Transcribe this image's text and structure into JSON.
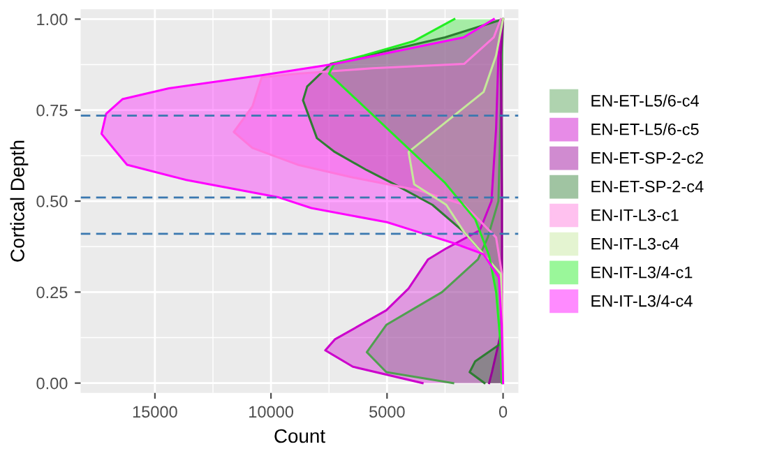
{
  "chart_data": {
    "type": "area",
    "orientation": "horizontal",
    "xlabel": "Count",
    "ylabel": "Cortical Depth",
    "xlim": [
      18200,
      -660
    ],
    "xticks": [
      15000,
      10000,
      5000,
      0
    ],
    "ylim": [
      -0.027,
      1.027
    ],
    "yticks": [
      {
        "value": 0,
        "label": "0.00"
      },
      {
        "value": 0.25,
        "label": "0.25"
      },
      {
        "value": 0.5,
        "label": "0.50"
      },
      {
        "value": 0.75,
        "label": "0.75"
      },
      {
        "value": 1,
        "label": "1.00"
      }
    ],
    "grid": true,
    "legend": "right",
    "ref_lines": [
      {
        "axis": "y",
        "value": 0.735,
        "label": null,
        "color": "#3a78b0",
        "line_style": "dashed"
      },
      {
        "axis": "y",
        "value": 0.51,
        "label": null,
        "color": "#3a78b0",
        "line_style": "dashed"
      },
      {
        "axis": "y",
        "value": 0.41,
        "label": null,
        "color": "#3a78b0",
        "line_style": "dashed"
      }
    ],
    "series": [
      {
        "name": "EN-ET-L5/6-c4",
        "color": "#4fa04f",
        "x": [
          0,
          0.03,
          0.085,
          0.16,
          0.25,
          0.34,
          0.4,
          0.5,
          0.75,
          1.0
        ],
        "values": [
          2150,
          5030,
          5870,
          5030,
          2630,
          1080,
          660,
          200,
          100,
          0
        ]
      },
      {
        "name": "EN-ET-L5/6-c5",
        "color": "#cc00cc",
        "x": [
          0,
          0.045,
          0.09,
          0.12,
          0.2,
          0.26,
          0.34,
          0.37,
          0.42,
          0.5,
          0.7,
          0.9,
          1.0
        ],
        "values": [
          3470,
          6470,
          7660,
          7250,
          5030,
          4070,
          3230,
          2450,
          1000,
          500,
          300,
          200,
          0
        ]
      },
      {
        "name": "EN-ET-SP-2-c2",
        "color": "#990099",
        "x": [
          0,
          0.03,
          0.08,
          0.15,
          0.5,
          0.9,
          1.0
        ],
        "values": [
          600,
          480,
          300,
          50,
          50,
          100,
          0
        ]
      },
      {
        "name": "EN-ET-SP-2-c4",
        "color": "#2e7d32",
        "x": [
          0,
          0.03,
          0.06,
          0.11,
          0.3,
          0.354,
          0.415,
          0.49,
          0.546,
          0.585,
          0.635,
          0.673,
          0.777,
          0.815,
          0.877,
          0.95,
          1.0
        ],
        "values": [
          800,
          1440,
          1200,
          60,
          100,
          840,
          1680,
          3050,
          4670,
          5870,
          7250,
          8020,
          8620,
          8440,
          7430,
          2500,
          0
        ]
      },
      {
        "name": "EN-IT-L3-c1",
        "color": "#ff77dd",
        "x": [
          0,
          0.3,
          0.4,
          0.49,
          0.53,
          0.565,
          0.6,
          0.646,
          0.69,
          0.76,
          0.84,
          0.85,
          0.865,
          0.877,
          0.95,
          1.0
        ],
        "values": [
          0,
          50,
          300,
          1680,
          3650,
          6470,
          8850,
          10800,
          11600,
          10800,
          10400,
          8850,
          5630,
          1680,
          400,
          100
        ]
      },
      {
        "name": "EN-IT-L3-c4",
        "color": "#c5e89a",
        "x": [
          0,
          0.3,
          0.415,
          0.49,
          0.546,
          0.635,
          0.8,
          0.9,
          1.0
        ],
        "values": [
          0,
          100,
          1680,
          2450,
          3830,
          4070,
          840,
          300,
          0
        ]
      },
      {
        "name": "EN-IT-L3/4-c1",
        "color": "#22ee22",
        "x": [
          0,
          0.1,
          0.25,
          0.35,
          0.45,
          0.55,
          0.7,
          0.85,
          0.88,
          0.9,
          0.94,
          1.0
        ],
        "values": [
          50,
          100,
          300,
          600,
          1200,
          2500,
          5000,
          7500,
          7250,
          6000,
          3830,
          2100
        ]
      },
      {
        "name": "EN-IT-L3/4-c4",
        "color": "#ff00ff",
        "x": [
          0,
          0.16,
          0.29,
          0.354,
          0.385,
          0.415,
          0.442,
          0.481,
          0.51,
          0.558,
          0.6,
          0.646,
          0.685,
          0.74,
          0.78,
          0.81,
          0.846,
          0.877,
          0.95,
          1.0
        ],
        "values": [
          0,
          60,
          180,
          840,
          2150,
          3650,
          5000,
          8260,
          9650,
          13650,
          16200,
          16800,
          17300,
          17100,
          16400,
          14400,
          10400,
          7250,
          1700,
          400
        ]
      }
    ]
  }
}
